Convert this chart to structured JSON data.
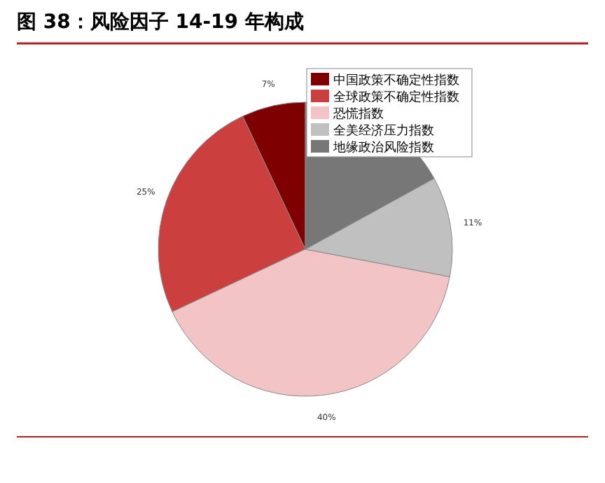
{
  "chart_data": {
    "type": "pie",
    "title": "图 38：风险因子 14-19 年构成",
    "categories": [
      "中国政策不确定性指数",
      "全球政策不确定性指数",
      "恐慌指数",
      "全美经济压力指数",
      "地缘政治风险指数"
    ],
    "values": [
      7,
      25,
      40,
      11,
      17
    ],
    "value_labels": [
      "7%",
      "25%",
      "40%",
      "11%",
      null
    ],
    "colors": [
      "#7f0000",
      "#cc3f3f",
      "#f2c4c6",
      "#c0c0c0",
      "#777777"
    ],
    "legend": "top right"
  }
}
